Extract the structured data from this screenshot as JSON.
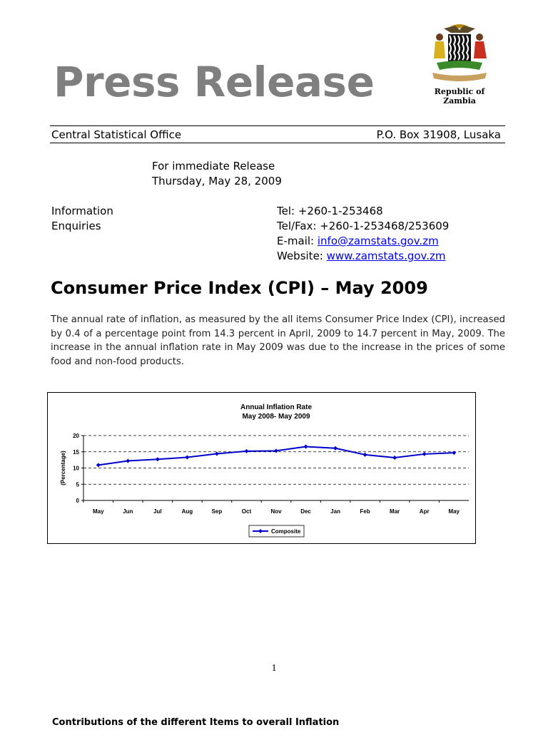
{
  "header": {
    "title": "Press Release",
    "coat_caption": "Republic of Zambia"
  },
  "office": {
    "name": "Central Statistical Office",
    "address": "P.O. Box 31908, Lusaka"
  },
  "release": {
    "line1": "For immediate Release",
    "date": "Thursday, May 28, 2009"
  },
  "contact": {
    "label_line1": "Information",
    "label_line2": "Enquiries",
    "tel": "Tel: +260-1-253468",
    "telfax": "Tel/Fax: +260-1-253468/253609",
    "email_label": "E-mail: ",
    "email": "info@zamstats.gov.zm",
    "website_label": "Website: ",
    "website": "www.zamstats.gov.zm"
  },
  "body": {
    "heading": "Consumer Price Index (CPI) – May 2009",
    "paragraph": "The annual rate of inflation, as measured by the all items Consumer Price Index (CPI), increased by 0.4 of a percentage point from 14.3 percent in April, 2009 to 14.7 percent in May, 2009. The increase in the annual inflation rate in May 2009 was due to the increase in the prices of some food and non-food products."
  },
  "chart_data": {
    "type": "line",
    "title": "Annual Inflation Rate",
    "subtitle": "May 2008- May 2009",
    "xlabel": "",
    "ylabel": "(Percentage)",
    "categories": [
      "May",
      "Jun",
      "Jul",
      "Aug",
      "Sep",
      "Oct",
      "Nov",
      "Dec",
      "Jan",
      "Feb",
      "Mar",
      "Apr",
      "May"
    ],
    "series": [
      {
        "name": "Composite",
        "values": [
          10.9,
          12.2,
          12.7,
          13.3,
          14.4,
          15.2,
          15.3,
          16.6,
          16.1,
          14.1,
          13.2,
          14.3,
          14.7
        ]
      }
    ],
    "ylim": [
      0,
      20
    ],
    "yticks": [
      0,
      5,
      10,
      15,
      20
    ],
    "grid": "horizontal dashed",
    "legend": "bottom-center",
    "color": "#0000cc"
  },
  "footer": {
    "page_number": "1",
    "next_heading": "Contributions of the different Items to overall Inflation"
  }
}
